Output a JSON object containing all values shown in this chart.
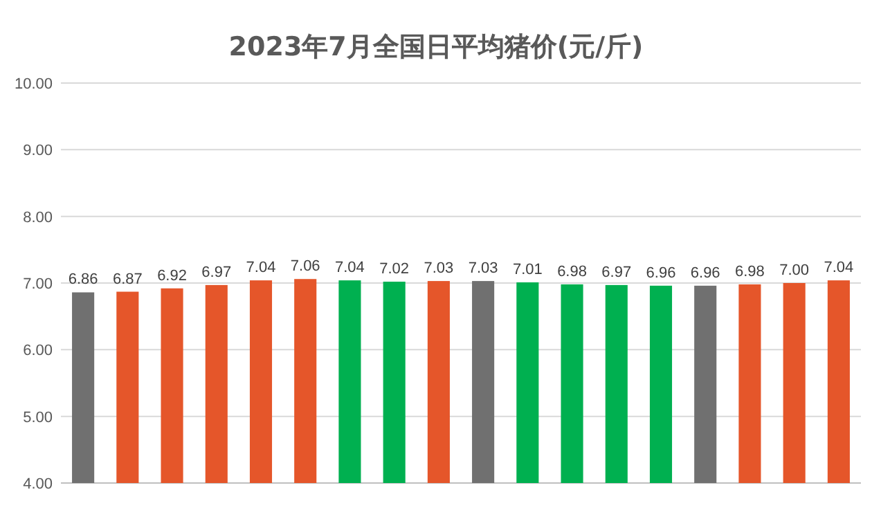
{
  "chart_data": {
    "type": "bar",
    "title": "2023年7月全国日平均猪价(元/斤)",
    "categories": [
      null,
      null,
      null,
      null,
      null,
      null,
      null,
      null,
      null,
      null,
      null,
      null,
      null,
      null,
      null,
      null,
      null,
      null
    ],
    "values": [
      6.86,
      6.87,
      6.92,
      6.97,
      7.04,
      7.06,
      7.04,
      7.02,
      7.03,
      7.03,
      7.01,
      6.98,
      6.97,
      6.96,
      6.96,
      6.98,
      7.0,
      7.04
    ],
    "value_labels": [
      "6.86",
      "6.87",
      "6.92",
      "6.97",
      "7.04",
      "7.06",
      "7.04",
      "7.02",
      "7.03",
      "7.03",
      "7.01",
      "6.98",
      "6.97",
      "6.96",
      "6.96",
      "6.98",
      "7.00",
      "7.04"
    ],
    "colors": [
      "#707070",
      "#e5562a",
      "#e5562a",
      "#e5562a",
      "#e5562a",
      "#e5562a",
      "#00b050",
      "#00b050",
      "#e5562a",
      "#707070",
      "#00b050",
      "#00b050",
      "#00b050",
      "#00b050",
      "#707070",
      "#e5562a",
      "#e5562a",
      "#e5562a"
    ],
    "ylim": [
      4,
      10
    ],
    "yticks": [
      {
        "value": 4,
        "label": "4.00"
      },
      {
        "value": 5,
        "label": "5.00"
      },
      {
        "value": 6,
        "label": "6.00"
      },
      {
        "value": 7,
        "label": "7.00"
      },
      {
        "value": 8,
        "label": "8.00"
      },
      {
        "value": 9,
        "label": "9.00"
      },
      {
        "value": 10,
        "label": "10.00"
      }
    ],
    "grid": "y"
  }
}
